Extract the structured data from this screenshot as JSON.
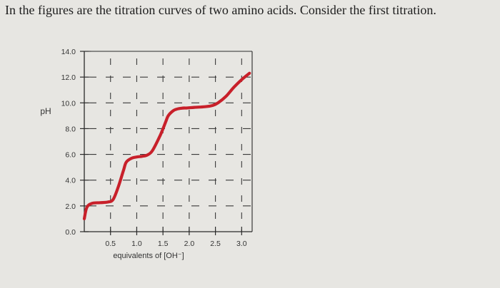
{
  "question": {
    "text": "In the figures are the titration curves of two amino acids. Consider the first titration."
  },
  "chart_data": {
    "type": "line",
    "title": "",
    "ylabel": "pH",
    "xlabel": "equivalents of [OH⁻]",
    "ylim": [
      0,
      14
    ],
    "xlim": [
      0,
      3.2
    ],
    "y_ticks": [
      {
        "value": 0,
        "label": "0.0"
      },
      {
        "value": 2,
        "label": "2.0"
      },
      {
        "value": 4,
        "label": "4.0"
      },
      {
        "value": 6,
        "label": "6.0"
      },
      {
        "value": 8,
        "label": "8.0"
      },
      {
        "value": 10,
        "label": "10.0"
      },
      {
        "value": 12,
        "label": "12.0"
      },
      {
        "value": 14,
        "label": "14.0"
      }
    ],
    "x_ticks": [
      {
        "value": 0.5,
        "label": "0.5"
      },
      {
        "value": 1.0,
        "label": "1.0"
      },
      {
        "value": 1.5,
        "label": "1.5"
      },
      {
        "value": 2.0,
        "label": "2.0"
      },
      {
        "value": 2.5,
        "label": "2.5"
      },
      {
        "value": 3.0,
        "label": "3.0"
      }
    ],
    "grid": "dashed",
    "series": [
      {
        "color": "#c8202a",
        "x": [
          0.0,
          0.05,
          0.15,
          0.3,
          0.45,
          0.55,
          0.65,
          0.75,
          0.8,
          0.9,
          1.0,
          1.1,
          1.2,
          1.3,
          1.45,
          1.55,
          1.6,
          1.7,
          1.8,
          1.9,
          1.95,
          2.1,
          2.3,
          2.45,
          2.55,
          2.7,
          2.85,
          3.0,
          3.15
        ],
        "y": [
          1.0,
          1.9,
          2.2,
          2.25,
          2.3,
          2.5,
          3.5,
          4.8,
          5.4,
          5.7,
          5.8,
          5.85,
          5.95,
          6.3,
          7.5,
          8.5,
          9.0,
          9.4,
          9.55,
          9.6,
          9.6,
          9.65,
          9.7,
          9.8,
          10.0,
          10.5,
          11.2,
          11.8,
          12.3
        ]
      }
    ]
  }
}
